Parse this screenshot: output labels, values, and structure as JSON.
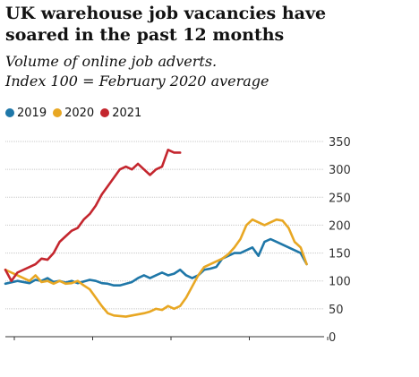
{
  "chart_data": {
    "type": "line",
    "title": "UK warehouse job vacancies have soared in the past 12 months",
    "subtitle": "Volume of online job adverts. Index 100 = February 2020 average",
    "subtitle_lines": [
      "Volume of online job adverts.",
      "Index 100 = February 2020 average"
    ],
    "title_lines": [
      "UK warehouse job vacancies have",
      "soared in the past 12 months"
    ],
    "ylim": [
      0,
      350
    ],
    "yticks": [
      0,
      50,
      100,
      150,
      200,
      250,
      300,
      350
    ],
    "xlim": [
      0,
      52
    ],
    "x_unit": "week of year",
    "grid": true,
    "legend_position": "top-left",
    "series": [
      {
        "name": "2019",
        "color": "#1f77a8",
        "x": [
          0,
          2,
          3,
          4,
          5,
          6,
          7,
          8,
          9,
          10,
          11,
          12,
          13,
          14,
          15,
          16,
          17,
          18,
          19,
          20,
          21,
          22,
          23,
          24,
          25,
          26,
          27,
          28,
          29,
          30,
          31,
          32,
          33,
          34,
          35,
          36,
          37,
          38,
          39,
          40,
          41,
          42,
          43,
          44,
          45,
          46,
          47,
          48,
          49,
          50
        ],
        "values": [
          95,
          100,
          98,
          96,
          102,
          100,
          105,
          98,
          100,
          97,
          100,
          96,
          99,
          102,
          100,
          96,
          95,
          92,
          92,
          95,
          98,
          105,
          110,
          105,
          110,
          115,
          110,
          113,
          120,
          110,
          105,
          110,
          120,
          122,
          125,
          140,
          145,
          150,
          150,
          155,
          160,
          145,
          170,
          175,
          170,
          165,
          160,
          155,
          150,
          130
        ]
      },
      {
        "name": "2020",
        "color": "#e8a723",
        "x": [
          0,
          1,
          2,
          3,
          4,
          5,
          6,
          7,
          8,
          9,
          10,
          11,
          12,
          13,
          14,
          15,
          16,
          17,
          18,
          19,
          20,
          21,
          22,
          23,
          24,
          25,
          26,
          27,
          28,
          29,
          30,
          31,
          32,
          33,
          34,
          35,
          36,
          37,
          38,
          39,
          40,
          41,
          42,
          43,
          44,
          45,
          46,
          47,
          48,
          49,
          50
        ],
        "values": [
          120,
          115,
          110,
          105,
          100,
          110,
          98,
          100,
          95,
          100,
          95,
          96,
          100,
          92,
          85,
          70,
          55,
          42,
          38,
          37,
          36,
          38,
          40,
          42,
          45,
          50,
          48,
          55,
          50,
          55,
          70,
          90,
          110,
          125,
          130,
          135,
          140,
          148,
          160,
          175,
          200,
          210,
          205,
          200,
          205,
          210,
          208,
          195,
          170,
          160,
          130
        ]
      },
      {
        "name": "2021",
        "color": "#c4262e",
        "x": [
          0,
          1,
          2,
          3,
          4,
          5,
          6,
          7,
          8,
          9,
          10,
          11,
          12,
          13,
          14,
          15,
          16,
          17,
          18,
          19,
          20,
          21,
          22,
          23,
          24,
          25,
          26,
          27,
          28,
          29
        ],
        "values": [
          120,
          100,
          115,
          120,
          125,
          130,
          140,
          138,
          150,
          170,
          180,
          190,
          195,
          210,
          220,
          235,
          255,
          270,
          285,
          300,
          305,
          300,
          310,
          300,
          290,
          300,
          305,
          335,
          330,
          330
        ]
      }
    ]
  }
}
